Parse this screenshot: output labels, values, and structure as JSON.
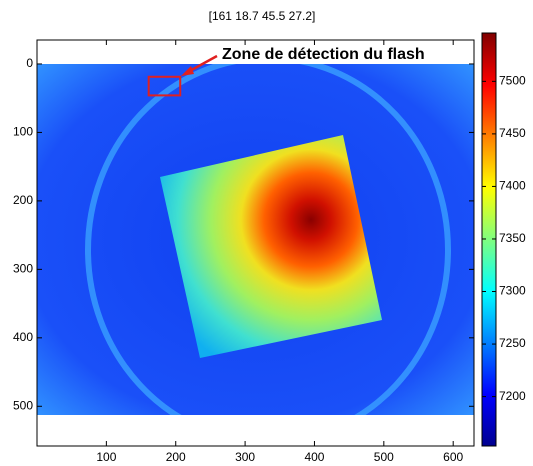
{
  "chart_data": {
    "type": "image",
    "title": "[161 18.7 45.5 27.2]",
    "annotation": "Zone de détection du flash",
    "highlight": {
      "x": 161,
      "y": 18.7,
      "width": 45.5,
      "height": 27.2,
      "color": "#e02020"
    },
    "xlim": [
      0,
      630
    ],
    "xticks": [
      100,
      200,
      300,
      400,
      500,
      600
    ],
    "ylim": [
      -35,
      558
    ],
    "yticks": [
      0,
      100,
      200,
      300,
      400,
      500
    ],
    "y_reversed": true,
    "colorbar": {
      "lim": [
        7153,
        7546
      ],
      "ticks": [
        7200,
        7250,
        7300,
        7350,
        7400,
        7450,
        7500
      ],
      "colormap": "jet"
    }
  }
}
